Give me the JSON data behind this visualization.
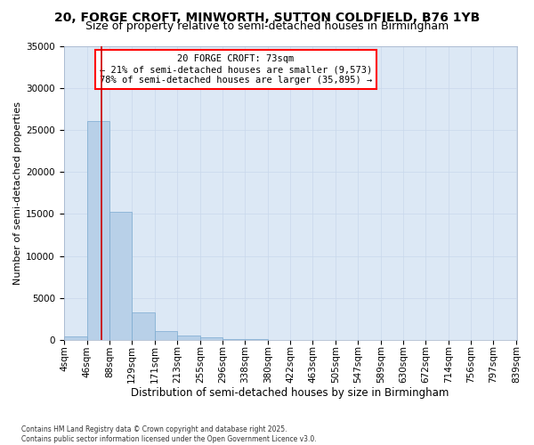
{
  "title1": "20, FORGE CROFT, MINWORTH, SUTTON COLDFIELD, B76 1YB",
  "title2": "Size of property relative to semi-detached houses in Birmingham",
  "xlabel": "Distribution of semi-detached houses by size in Birmingham",
  "ylabel": "Number of semi-detached properties",
  "footnote": "Contains HM Land Registry data © Crown copyright and database right 2025.\nContains public sector information licensed under the Open Government Licence v3.0.",
  "annotation_line1": "20 FORGE CROFT: 73sqm",
  "annotation_line2": "← 21% of semi-detached houses are smaller (9,573)",
  "annotation_line3": "78% of semi-detached houses are larger (35,895) →",
  "property_size": 73,
  "bar_edges": [
    4,
    46,
    88,
    129,
    171,
    213,
    255,
    296,
    338,
    380,
    422,
    463,
    505,
    547,
    589,
    630,
    672,
    714,
    756,
    797,
    839
  ],
  "bar_values": [
    400,
    26100,
    15200,
    3300,
    1100,
    500,
    300,
    100,
    50,
    20,
    10,
    5,
    3,
    2,
    1,
    1,
    0,
    0,
    0,
    0
  ],
  "bar_color": "#b8d0e8",
  "bar_edge_color": "#7aaad0",
  "red_line_color": "#cc0000",
  "background_color": "#dce8f5",
  "grid_color": "#c8d8ec",
  "ylim": [
    0,
    35000
  ],
  "yticks": [
    0,
    5000,
    10000,
    15000,
    20000,
    25000,
    30000,
    35000
  ],
  "title1_fontsize": 10,
  "title2_fontsize": 9,
  "xlabel_fontsize": 8.5,
  "ylabel_fontsize": 8,
  "tick_fontsize": 7.5,
  "annot_fontsize": 7.5,
  "footnote_fontsize": 5.5
}
